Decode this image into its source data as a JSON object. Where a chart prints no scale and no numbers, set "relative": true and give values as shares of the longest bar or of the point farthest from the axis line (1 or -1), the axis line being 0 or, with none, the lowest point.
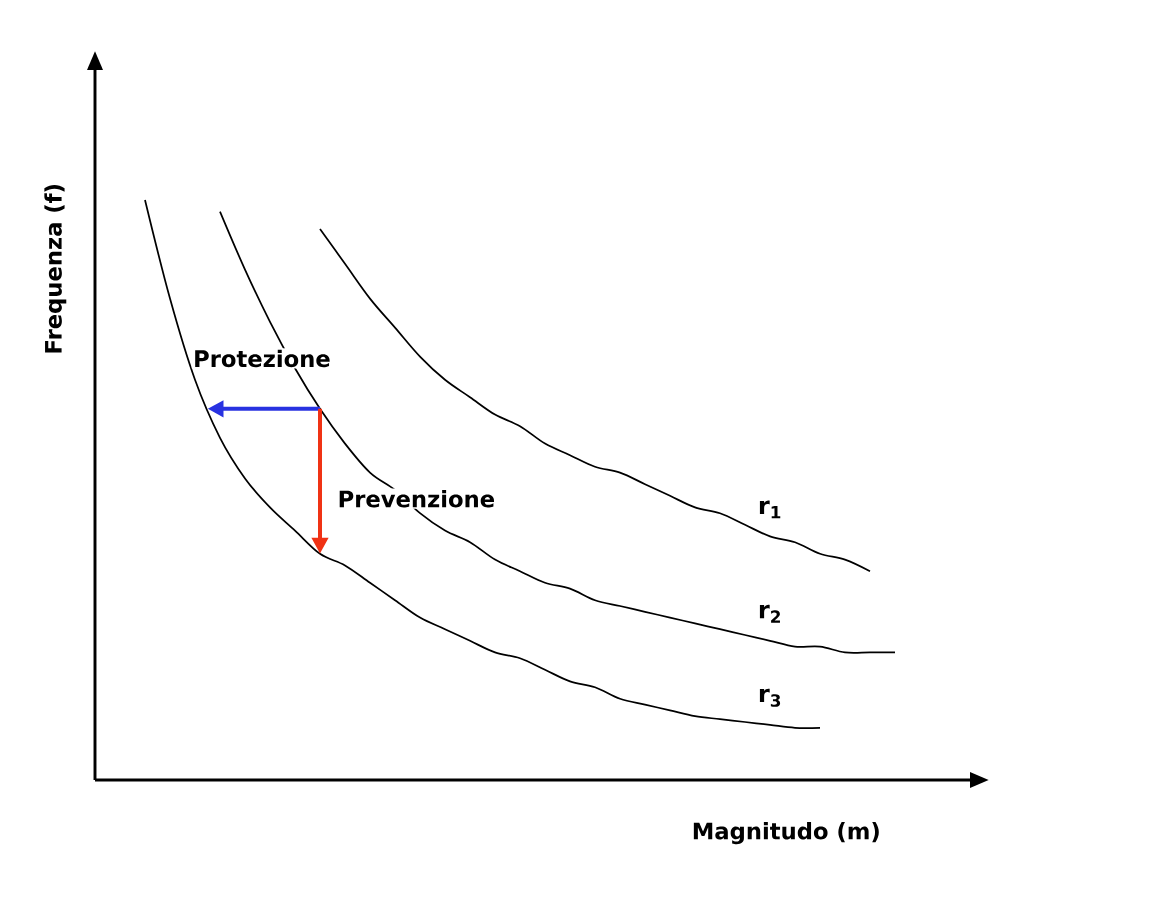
{
  "chart_data": {
    "type": "line",
    "relative": true,
    "xlabel": "Magnitudo (m)",
    "ylabel": "Frequenza (f)",
    "categories": [
      null,
      null,
      null,
      null,
      null,
      null,
      null,
      null,
      null,
      null,
      null,
      null,
      null,
      null,
      null,
      null,
      null,
      null,
      null,
      null,
      null,
      null,
      null,
      null,
      null,
      null,
      null,
      null,
      null,
      null,
      null,
      null
    ],
    "series": [
      {
        "name": "r$_{1}$",
        "color": "#000000",
        "values": [
          null,
          null,
          null,
          null,
          null,
          null,
          null,
          0.95,
          0.89,
          0.83,
          0.78,
          0.73,
          0.69,
          0.66,
          0.63,
          0.61,
          0.58,
          0.56,
          0.54,
          0.53,
          0.51,
          0.49,
          0.47,
          0.46,
          0.44,
          0.42,
          0.41,
          0.39,
          0.38,
          0.36,
          null,
          null
        ]
      },
      {
        "name": "r$_{2}$",
        "color": "#000000",
        "values": [
          null,
          null,
          null,
          0.98,
          0.88,
          0.79,
          0.71,
          0.64,
          0.58,
          0.53,
          0.5,
          0.46,
          0.43,
          0.41,
          0.38,
          0.36,
          0.34,
          0.33,
          0.31,
          0.3,
          0.29,
          0.28,
          0.27,
          0.26,
          0.25,
          0.24,
          0.23,
          0.23,
          0.22,
          0.22,
          0.22,
          null
        ]
      },
      {
        "name": "r$_{3}$",
        "color": "#000000",
        "values": [
          1.0,
          0.83,
          0.69,
          0.59,
          0.52,
          0.47,
          0.43,
          0.39,
          0.37,
          0.34,
          0.31,
          0.28,
          0.26,
          0.24,
          0.22,
          0.21,
          0.19,
          0.17,
          0.16,
          0.14,
          0.13,
          0.12,
          0.11,
          0.105,
          0.1,
          0.095,
          0.09,
          0.09,
          null,
          null,
          null,
          null
        ]
      }
    ],
    "annotations": [
      "Protezione",
      "Prevenzione"
    ]
  }
}
